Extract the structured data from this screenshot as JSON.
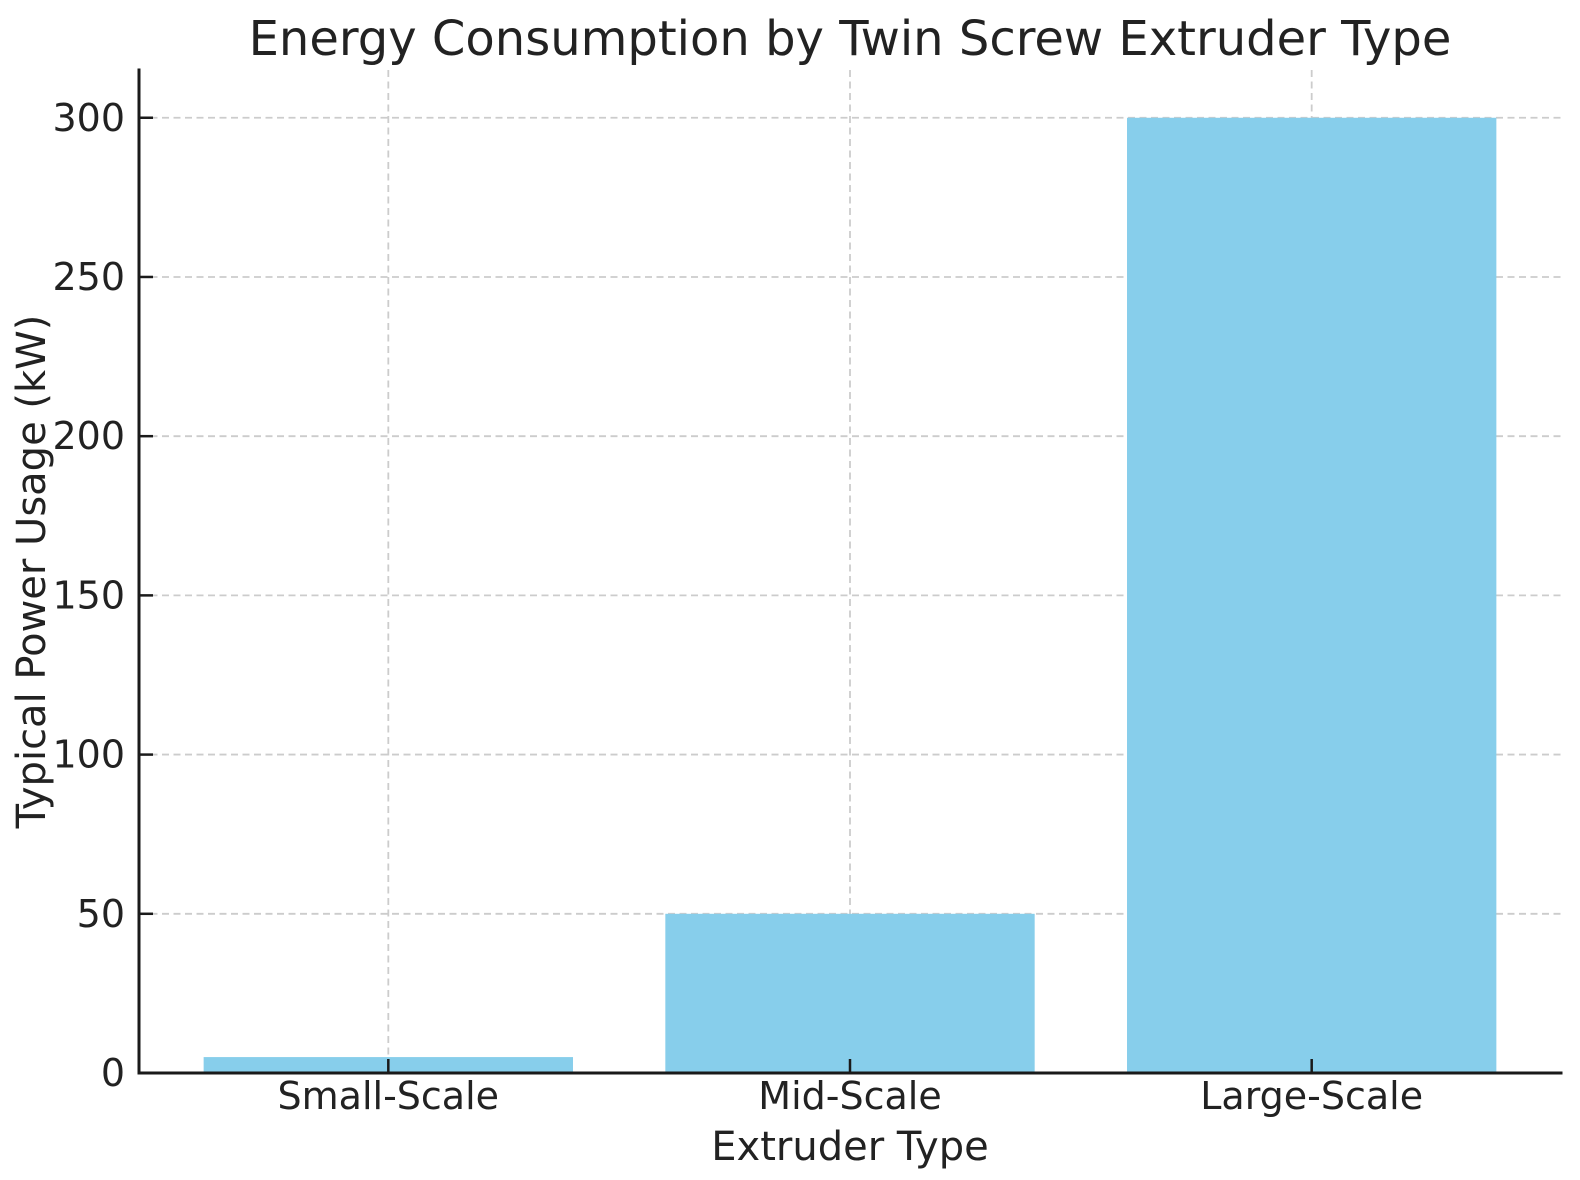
{
  "chart_data": {
    "type": "bar",
    "title": "Energy Consumption by Twin Screw Extruder Type",
    "xlabel": "Extruder Type",
    "ylabel": "Typical Power Usage (kW)",
    "categories": [
      "Small-Scale",
      "Mid-Scale",
      "Large-Scale"
    ],
    "values": [
      5,
      50,
      300
    ],
    "yticks": [
      0,
      50,
      100,
      150,
      200,
      250,
      300
    ],
    "ylim": [
      0,
      315
    ],
    "bar_color": "#87CEEB",
    "grid": "dashed",
    "grid_color": "#cccccc",
    "axis_color": "#1a1a1a",
    "text_color": "#222222",
    "legend": "none",
    "bar_width_fraction": 0.8
  }
}
